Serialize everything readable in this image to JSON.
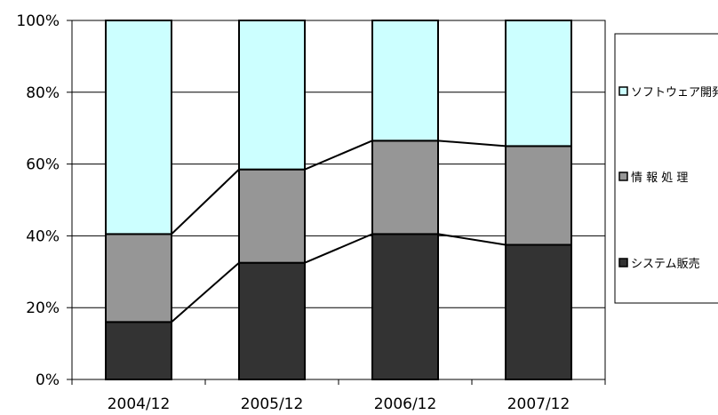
{
  "chart_data": {
    "type": "bar",
    "stacked": "percent",
    "categories": [
      "2004/12",
      "2005/12",
      "2006/12",
      "2007/12"
    ],
    "series": [
      {
        "name": "システム販売",
        "values": [
          16,
          32.5,
          40.5,
          37.5
        ],
        "color": "#333333"
      },
      {
        "name": "情 報 処 理",
        "values": [
          24.5,
          26,
          26,
          27.5
        ],
        "color": "#969696"
      },
      {
        "name": "ソフトウェア開発",
        "values": [
          59.5,
          41.5,
          33.5,
          35
        ],
        "color": "#ccffff"
      }
    ],
    "series_lines": true,
    "ylim": [
      0,
      100
    ],
    "yticks": [
      "0%",
      "20%",
      "40%",
      "60%",
      "80%",
      "100%"
    ],
    "grid": true,
    "legend": "right",
    "legend_order": [
      "ソフトウェア開発",
      "情 報 処 理",
      "システム販売"
    ]
  }
}
